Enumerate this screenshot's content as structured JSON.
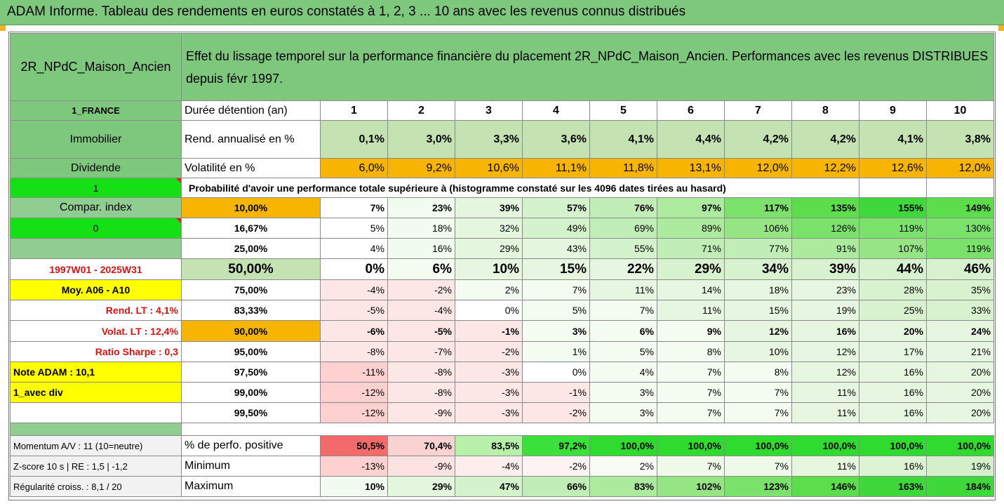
{
  "title": "ADAM Informe. Tableau des rendements en euros constatés à 1, 2, 3 ... 10 ans avec les revenus connus distribués",
  "header": {
    "asset_name": "2R_NPdC_Maison_Ancien",
    "description": "Effet du lissage temporel sur la performance financière du placement 2R_NPdC_Maison_Ancien. Performances avec les revenus DISTRIBUES depuis févr 1997."
  },
  "left_panel": {
    "country": "1_FRANCE",
    "category": "Immobilier",
    "dividend": "Dividende",
    "flag_one": "1",
    "compar_index": "Compar. index",
    "flag_zero": "0",
    "period": "1997W01 - 2025W31",
    "moy": "Moy. A06 - A10",
    "rend_lt": "Rend. LT :   4,1%",
    "volat_lt": "Volat. LT :   12,4%",
    "ratio_sharpe": "Ratio Sharpe :   0,3",
    "note_adam": "Note ADAM : 10,1",
    "avec_div": "1_avec div",
    "momentum": "Momentum A/V : 11 (10=neutre)",
    "zscore": "Z-score 10 s  |  RE : 1,5  |  -1,2",
    "regularite": "Régularité croiss. : 8,1 / 20"
  },
  "rows": {
    "duree_label": "Durée détention (an)",
    "years": [
      "1",
      "2",
      "3",
      "4",
      "5",
      "6",
      "7",
      "8",
      "9",
      "10"
    ],
    "rend_label": "Rend. annualisé en %",
    "rend": [
      "0,1%",
      "3,0%",
      "3,3%",
      "3,6%",
      "4,1%",
      "4,4%",
      "4,2%",
      "4,2%",
      "4,1%",
      "3,8%"
    ],
    "vol_label": "Volatilité en %",
    "vol": [
      "6,0%",
      "9,2%",
      "10,6%",
      "11,1%",
      "11,8%",
      "13,1%",
      "12,0%",
      "12,2%",
      "12,6%",
      "12,0%"
    ],
    "proba_label": "Probabilité d'avoir une performance totale supérieure à (histogramme constaté sur les 4096 dates tirées au hasard)"
  },
  "percentiles": [
    {
      "p": "10,00%",
      "v": [
        "7%",
        "23%",
        "39%",
        "57%",
        "76%",
        "97%",
        "117%",
        "135%",
        "155%",
        "149%"
      ]
    },
    {
      "p": "16,67%",
      "v": [
        "5%",
        "18%",
        "32%",
        "49%",
        "69%",
        "89%",
        "106%",
        "126%",
        "119%",
        "130%"
      ]
    },
    {
      "p": "25,00%",
      "v": [
        "4%",
        "16%",
        "29%",
        "43%",
        "55%",
        "71%",
        "77%",
        "91%",
        "107%",
        "119%"
      ]
    },
    {
      "p": "50,00%",
      "v": [
        "0%",
        "6%",
        "10%",
        "15%",
        "22%",
        "29%",
        "34%",
        "39%",
        "44%",
        "46%"
      ]
    },
    {
      "p": "75,00%",
      "v": [
        "-4%",
        "-2%",
        "2%",
        "7%",
        "11%",
        "14%",
        "18%",
        "23%",
        "28%",
        "35%"
      ]
    },
    {
      "p": "83,33%",
      "v": [
        "-5%",
        "-4%",
        "0%",
        "5%",
        "7%",
        "11%",
        "15%",
        "19%",
        "25%",
        "33%"
      ]
    },
    {
      "p": "90,00%",
      "v": [
        "-6%",
        "-5%",
        "-1%",
        "3%",
        "6%",
        "9%",
        "12%",
        "16%",
        "20%",
        "24%"
      ]
    },
    {
      "p": "95,00%",
      "v": [
        "-8%",
        "-7%",
        "-2%",
        "1%",
        "5%",
        "8%",
        "10%",
        "12%",
        "17%",
        "21%"
      ]
    },
    {
      "p": "97,50%",
      "v": [
        "-11%",
        "-8%",
        "-3%",
        "0%",
        "4%",
        "7%",
        "8%",
        "12%",
        "16%",
        "20%"
      ]
    },
    {
      "p": "99,00%",
      "v": [
        "-12%",
        "-8%",
        "-3%",
        "-1%",
        "3%",
        "7%",
        "7%",
        "11%",
        "16%",
        "20%"
      ]
    },
    {
      "p": "99,50%",
      "v": [
        "-12%",
        "-9%",
        "-3%",
        "-2%",
        "3%",
        "7%",
        "7%",
        "11%",
        "16%",
        "20%"
      ]
    }
  ],
  "bottom": {
    "pos_label": "% de perfo. positive",
    "pos": [
      "50,5%",
      "70,4%",
      "83,5%",
      "97,2%",
      "100,0%",
      "100,0%",
      "100,0%",
      "100,0%",
      "100,0%",
      "100,0%"
    ],
    "min_label": "Minimum",
    "min": [
      "-13%",
      "-9%",
      "-4%",
      "-2%",
      "2%",
      "7%",
      "7%",
      "11%",
      "16%",
      "19%"
    ],
    "max_label": "Maximum",
    "max": [
      "10%",
      "29%",
      "47%",
      "66%",
      "83%",
      "102%",
      "123%",
      "146%",
      "163%",
      "184%"
    ]
  },
  "colors": {
    "header_green": "#7ec87e",
    "pale_green": "#c5e2b3",
    "orange": "#f7b400",
    "lime": "#15e015",
    "yellow": "#ffff00",
    "red_text": "#d81010",
    "pink": "#ffd8d8"
  }
}
